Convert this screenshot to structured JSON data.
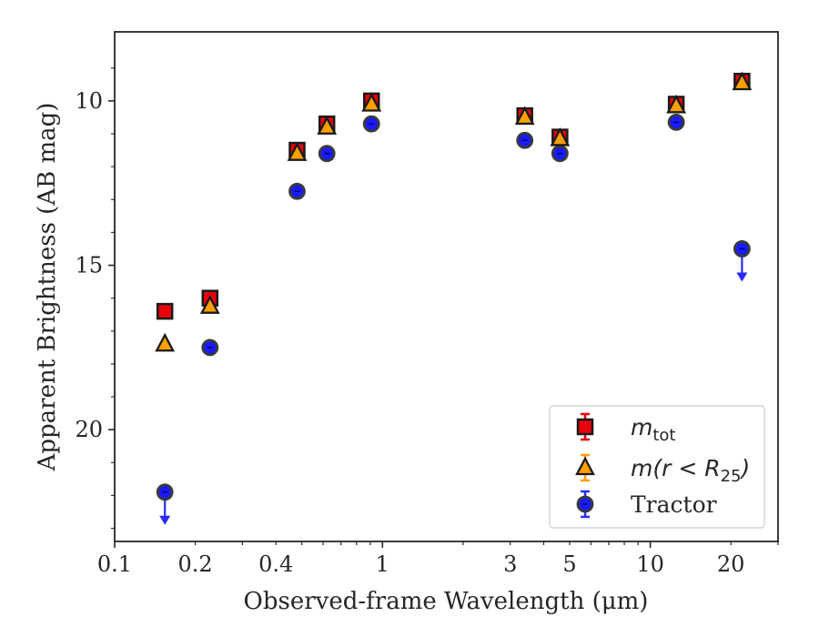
{
  "chart_data": {
    "type": "scatter",
    "xlabel": "Observed-frame Wavelength (μm)",
    "ylabel": "Apparent Brightness (AB mag)",
    "xscale": "log",
    "xlim": [
      0.1,
      30
    ],
    "ylim": [
      23.4,
      7.9
    ],
    "y_inverted": true,
    "x_ticks": [
      {
        "value": 0.1,
        "label": "0.1"
      },
      {
        "value": 0.2,
        "label": "0.2"
      },
      {
        "value": 0.4,
        "label": "0.4"
      },
      {
        "value": 1,
        "label": "1"
      },
      {
        "value": 3,
        "label": "3"
      },
      {
        "value": 5,
        "label": "5"
      },
      {
        "value": 10,
        "label": "10"
      },
      {
        "value": 20,
        "label": "20"
      }
    ],
    "y_ticks": [
      {
        "value": 10,
        "label": "10"
      },
      {
        "value": 15,
        "label": "15"
      },
      {
        "value": 20,
        "label": "20"
      }
    ],
    "grid": false,
    "legend_position": "lower-right",
    "series": [
      {
        "name": "m_tot",
        "legend": {
          "base": "m",
          "sub": "tot"
        },
        "marker": "square",
        "color": "#e8000b",
        "edge": "#1a1a1a",
        "points": [
          {
            "x": 0.154,
            "y": 16.4
          },
          {
            "x": 0.227,
            "y": 16.0
          },
          {
            "x": 0.48,
            "y": 11.5
          },
          {
            "x": 0.62,
            "y": 10.7
          },
          {
            "x": 0.91,
            "y": 10.0
          },
          {
            "x": 3.4,
            "y": 10.45
          },
          {
            "x": 4.6,
            "y": 11.1
          },
          {
            "x": 12.5,
            "y": 10.1
          },
          {
            "x": 22.0,
            "y": 9.4
          }
        ]
      },
      {
        "name": "m(r < R25)",
        "legend": {
          "base": "m(r < R",
          "sub": "25",
          "tail": ")"
        },
        "marker": "triangle",
        "color": "#ff9f00",
        "edge": "#1a1a1a",
        "points": [
          {
            "x": 0.154,
            "y": 17.4
          },
          {
            "x": 0.227,
            "y": 16.25
          },
          {
            "x": 0.48,
            "y": 11.6
          },
          {
            "x": 0.62,
            "y": 10.8
          },
          {
            "x": 0.91,
            "y": 10.1
          },
          {
            "x": 3.4,
            "y": 10.5
          },
          {
            "x": 4.6,
            "y": 11.15
          },
          {
            "x": 12.5,
            "y": 10.15
          },
          {
            "x": 22.0,
            "y": 9.45
          }
        ]
      },
      {
        "name": "Tractor",
        "legend": {
          "base": "Tractor"
        },
        "marker": "circle",
        "color": "#1a1aff",
        "edge": "#3a3a3a",
        "points": [
          {
            "x": 0.154,
            "y": 21.9,
            "upper_limit": true
          },
          {
            "x": 0.227,
            "y": 17.5
          },
          {
            "x": 0.48,
            "y": 12.75
          },
          {
            "x": 0.62,
            "y": 11.6
          },
          {
            "x": 0.91,
            "y": 10.7
          },
          {
            "x": 3.4,
            "y": 11.2
          },
          {
            "x": 4.6,
            "y": 11.6
          },
          {
            "x": 12.5,
            "y": 10.65
          },
          {
            "x": 22.0,
            "y": 14.5,
            "upper_limit": true
          }
        ]
      }
    ]
  }
}
